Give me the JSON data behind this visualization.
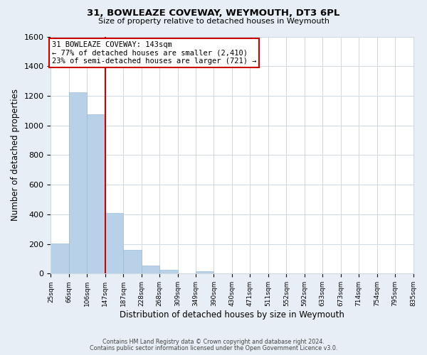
{
  "title": "31, BOWLEAZE COVEWAY, WEYMOUTH, DT3 6PL",
  "subtitle": "Size of property relative to detached houses in Weymouth",
  "xlabel": "Distribution of detached houses by size in Weymouth",
  "ylabel": "Number of detached properties",
  "bar_color": "#b8d0e8",
  "bar_edge_color": "#9bbcd8",
  "bin_labels": [
    "25sqm",
    "66sqm",
    "106sqm",
    "147sqm",
    "187sqm",
    "228sqm",
    "268sqm",
    "309sqm",
    "349sqm",
    "390sqm",
    "430sqm",
    "471sqm",
    "511sqm",
    "552sqm",
    "592sqm",
    "633sqm",
    "673sqm",
    "714sqm",
    "754sqm",
    "795sqm",
    "835sqm"
  ],
  "bar_heights": [
    205,
    1225,
    1075,
    410,
    160,
    55,
    25,
    0,
    15,
    0,
    0,
    0,
    0,
    0,
    0,
    0,
    0,
    0,
    0,
    0
  ],
  "property_line_color": "#cc0000",
  "annotation_text": "31 BOWLEAZE COVEWAY: 143sqm\n← 77% of detached houses are smaller (2,410)\n23% of semi-detached houses are larger (721) →",
  "annotation_box_edge_color": "#cc0000",
  "annotation_box_face_color": "#ffffff",
  "ylim": [
    0,
    1600
  ],
  "yticks": [
    0,
    200,
    400,
    600,
    800,
    1000,
    1200,
    1400,
    1600
  ],
  "footer_line1": "Contains HM Land Registry data © Crown copyright and database right 2024.",
  "footer_line2": "Contains public sector information licensed under the Open Government Licence v3.0.",
  "background_color": "#e8eef5",
  "plot_background_color": "#ffffff",
  "grid_color": "#d0d8e0"
}
